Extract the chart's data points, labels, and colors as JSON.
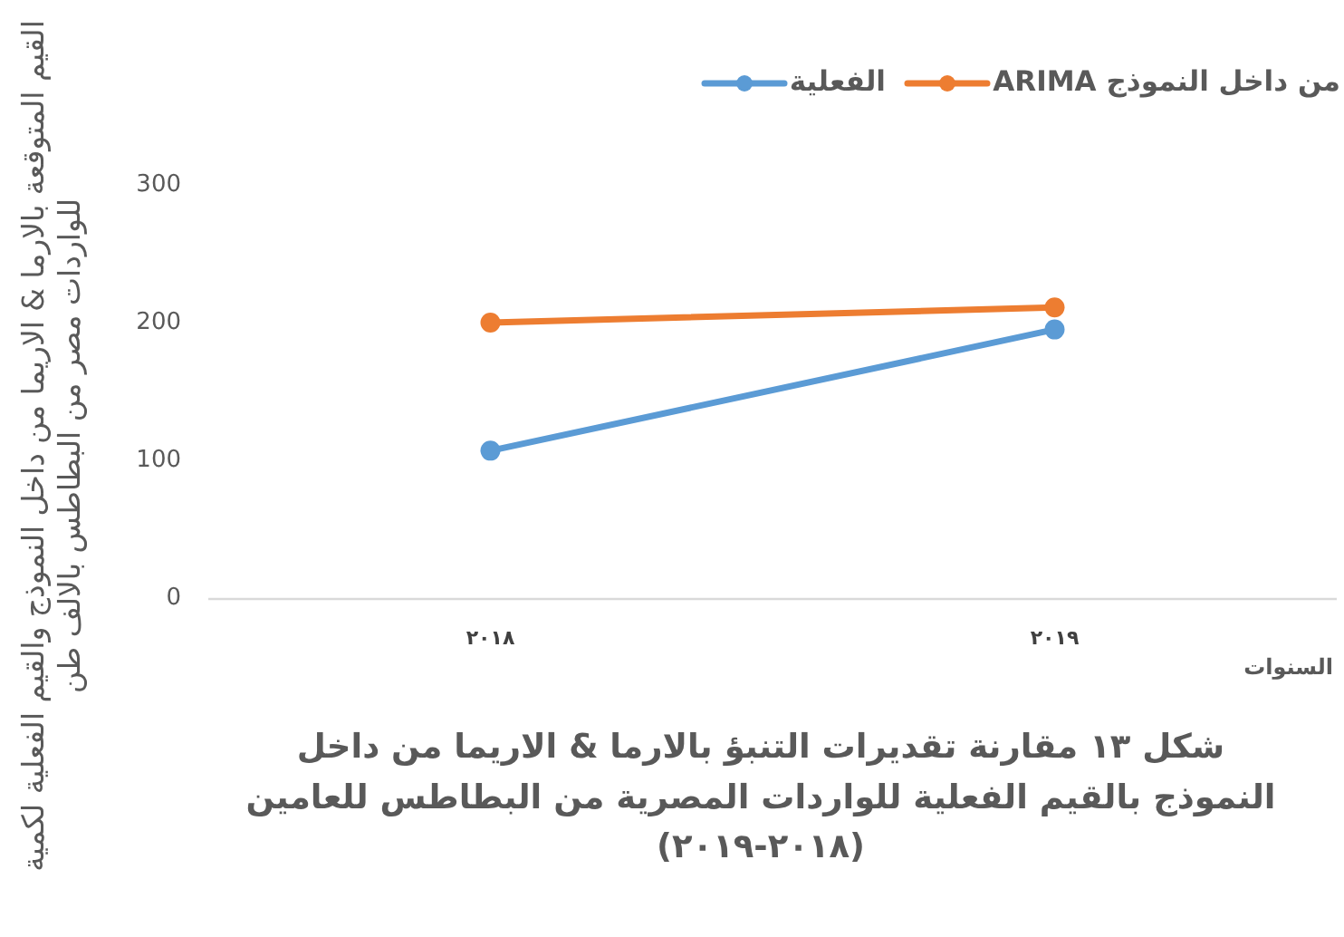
{
  "chart_data": {
    "type": "line",
    "title": "شكل ١٣ مقارنة تقديرات التنبؤ بالارما & الاريما من داخل\nالنموذج بالقيم الفعلية للواردات المصرية من البطاطس للعامين\n(٢٠١٨-٢٠١٩)",
    "xlabel": "السنوات",
    "ylabel": "القيم المتوقعة بالارما & الاريما من داخل النموذج والقيم الفعلية لكمية\nللواردات مصر من البطاطس بالالف طن",
    "categories": [
      "٢٠١٨",
      "٢٠١٩"
    ],
    "series": [
      {
        "name": "من داخل النموذج ARIMA",
        "color": "#ed7d31",
        "values": [
          200,
          211
        ]
      },
      {
        "name": "الفعلية",
        "color": "#5b9bd5",
        "values": [
          107,
          195
        ]
      }
    ],
    "ylim": [
      0,
      300
    ],
    "yticks": [
      0,
      100,
      200,
      300
    ],
    "legend": "top right",
    "marker": "circle",
    "line_style": "solid"
  }
}
